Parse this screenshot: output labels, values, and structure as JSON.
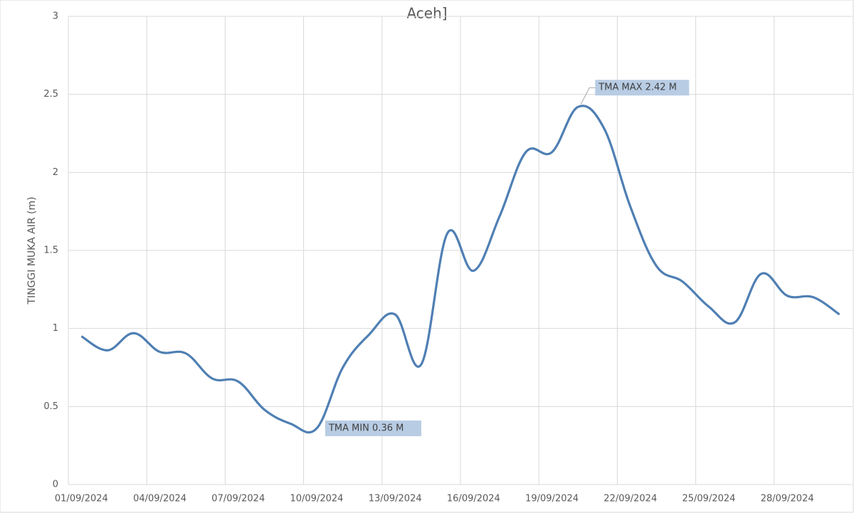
{
  "chart_data": {
    "type": "line",
    "title": "Aceh]",
    "ylabel": "TINGGI MUKA AIR (m)",
    "categories": [
      "01/09/2024",
      null,
      null,
      "04/09/2024",
      null,
      null,
      "07/09/2024",
      null,
      null,
      "10/09/2024",
      null,
      null,
      "13/09/2024",
      null,
      null,
      "16/09/2024",
      null,
      null,
      "19/09/2024",
      null,
      null,
      "22/09/2024",
      null,
      null,
      "25/09/2024",
      null,
      null,
      "28/09/2024",
      null,
      null
    ],
    "series": [
      {
        "name": "TMA",
        "color": "#4f7fb3",
        "values": [
          0.95,
          0.86,
          0.97,
          0.85,
          0.84,
          0.68,
          0.66,
          0.48,
          0.39,
          0.36,
          0.75,
          0.96,
          1.09,
          0.77,
          1.61,
          1.37,
          1.72,
          2.13,
          2.13,
          2.42,
          2.28,
          1.78,
          1.4,
          1.3,
          1.14,
          1.04,
          1.35,
          1.21,
          1.2,
          1.09
        ]
      }
    ],
    "ylim": [
      0,
      3
    ],
    "yticks": [
      0,
      0.5,
      1,
      1.5,
      2,
      2.5,
      3
    ],
    "grid": true,
    "annotations": [
      {
        "text": "TMA MAX  2.42 M",
        "index": 19
      },
      {
        "text": "TMA MIN  0.36  M",
        "index": 9
      }
    ]
  }
}
